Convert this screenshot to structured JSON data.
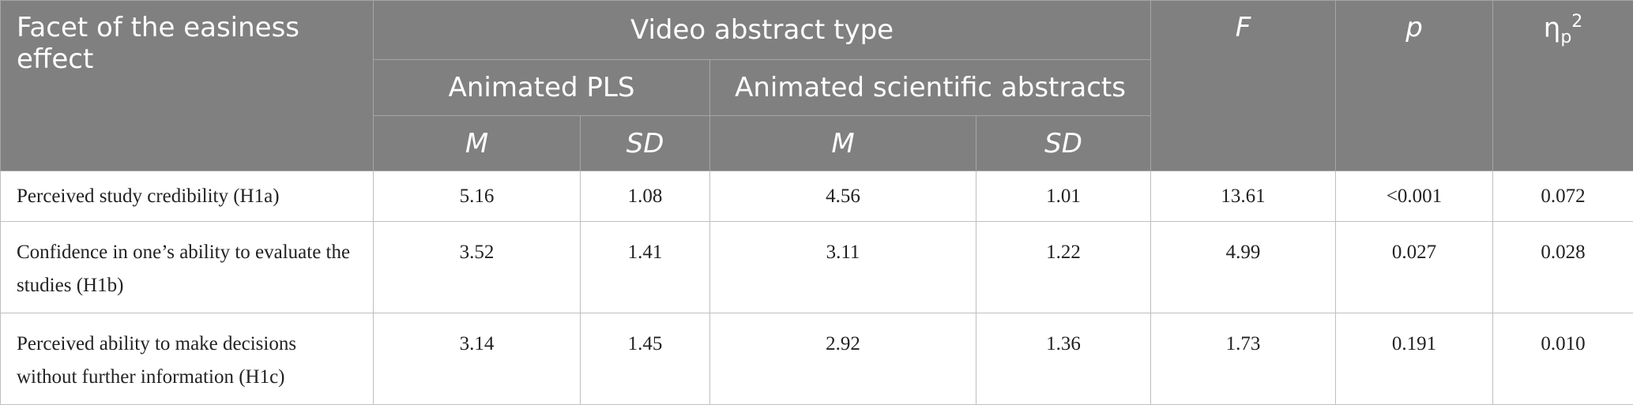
{
  "table": {
    "header": {
      "facet": "Facet of the easiness effect",
      "group": "Video abstract type",
      "subgroups": [
        "Animated PLS",
        "Animated scientific abstracts"
      ],
      "stats": [
        "M",
        "SD",
        "M",
        "SD"
      ],
      "f": "F",
      "p": "p",
      "eta": "η",
      "eta_sub": "p",
      "eta_sup": "2"
    },
    "rows": [
      [
        "Perceived study credibility (H1a)",
        "5.16",
        "1.08",
        "4.56",
        "1.01",
        "13.61",
        "<0.001",
        "0.072"
      ],
      [
        "Confidence in one’s ability to evaluate the studies (H1b)",
        "3.52",
        "1.41",
        "3.11",
        "1.22",
        "4.99",
        "0.027",
        "0.028"
      ],
      [
        "Perceived ability to make decisions without further information (H1c)",
        "3.14",
        "1.45",
        "2.92",
        "1.36",
        "1.73",
        "0.191",
        "0.010"
      ]
    ]
  }
}
